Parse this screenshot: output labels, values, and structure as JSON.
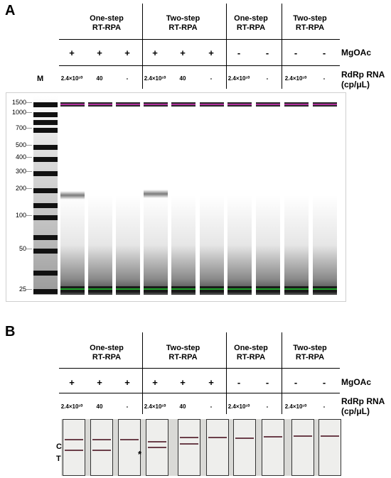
{
  "panelA": {
    "label": "A",
    "groups": [
      {
        "title": "One-step\nRT-RPA"
      },
      {
        "title": "Two-step\nRT-RPA"
      },
      {
        "title": "One-step\nRT-RPA"
      },
      {
        "title": "Two-step\nRT-RPA"
      }
    ],
    "mgoac_label": "MgOAc",
    "rna_label": "RdRp RNA\n(cp/μL)",
    "marker_label": "M",
    "mgoac": [
      "+",
      "+",
      "+",
      "+",
      "+",
      "+",
      "-",
      "-",
      "-",
      "-"
    ],
    "conc": [
      "2.4×10¹⁰",
      "40",
      "-",
      "2.4×10¹⁰",
      "40",
      "-",
      "2.4×10¹⁰",
      "-",
      "2.4×10¹⁰",
      "-"
    ],
    "ladder": [
      "1500",
      "1000",
      "700",
      "500",
      "400",
      "300",
      "200",
      "100",
      "50",
      "25"
    ]
  },
  "panelB": {
    "label": "B",
    "groups": [
      {
        "title": "One-step\nRT-RPA"
      },
      {
        "title": "Two-step\nRT-RPA"
      },
      {
        "title": "One-step\nRT-RPA"
      },
      {
        "title": "Two-step\nRT-RPA"
      }
    ],
    "mgoac_label": "MgOAc",
    "rna_label": "RdRp RNA\n(cp/μL)",
    "mgoac": [
      "+",
      "+",
      "+",
      "+",
      "+",
      "+",
      "-",
      "-",
      "-",
      "-"
    ],
    "conc": [
      "2.4×10¹⁰",
      "40",
      "-",
      "2.4×10¹⁰",
      "40",
      "-",
      "2.4×10¹⁰",
      "-",
      "2.4×10¹⁰",
      "-"
    ],
    "c_label": "C",
    "t_label": "T",
    "asterisk": "*"
  },
  "colors": {
    "upper_marker": "#b0309c",
    "lower_marker": "#1fa32a",
    "strip_line": "#6b3f4a"
  }
}
